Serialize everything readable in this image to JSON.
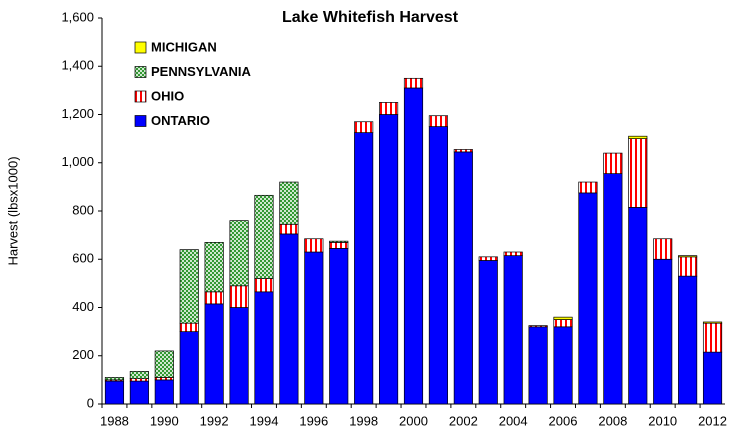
{
  "chart_data": {
    "type": "stacked-bar",
    "title": "Lake Whitefish Harvest",
    "y_label": "Harvest (lbsx1000)",
    "categories": [
      "1988",
      null,
      "1990",
      null,
      "1992",
      null,
      "1994",
      null,
      "1996",
      null,
      "1998",
      null,
      "2000",
      null,
      "2002",
      null,
      "2004",
      null,
      "2006",
      null,
      "2008",
      null,
      "2010",
      null,
      "2012"
    ],
    "series": [
      {
        "name": "ONTARIO",
        "color": "#0000ff",
        "fill": "solid",
        "values": [
          95,
          95,
          100,
          300,
          415,
          400,
          465,
          705,
          630,
          645,
          1125,
          1200,
          1310,
          1150,
          1045,
          595,
          615,
          320,
          320,
          875,
          955,
          815,
          600,
          530,
          215
        ]
      },
      {
        "name": "OHIO",
        "color": "#ff0000",
        "fill": "stripes",
        "values": [
          5,
          10,
          10,
          35,
          50,
          90,
          55,
          40,
          55,
          25,
          45,
          50,
          40,
          45,
          10,
          15,
          15,
          5,
          30,
          45,
          85,
          285,
          85,
          80,
          120
        ]
      },
      {
        "name": "PENNSYLVANIA",
        "color": "#339933",
        "fill": "dots",
        "values": [
          10,
          30,
          110,
          305,
          205,
          270,
          345,
          175,
          0,
          5,
          0,
          0,
          0,
          0,
          0,
          0,
          0,
          0,
          0,
          0,
          0,
          0,
          0,
          0,
          0
        ]
      },
      {
        "name": "MICHIGAN",
        "color": "#ffff00",
        "fill": "solid",
        "values": [
          0,
          0,
          0,
          0,
          0,
          0,
          0,
          0,
          0,
          0,
          0,
          0,
          0,
          0,
          0,
          0,
          0,
          0,
          10,
          0,
          0,
          10,
          0,
          5,
          5
        ]
      }
    ],
    "ylim": [
      0,
      1600
    ],
    "yticks": [
      0,
      200,
      400,
      600,
      800,
      {
        "value": 1000,
        "label": "1,000"
      },
      {
        "value": 1200,
        "label": "1,200"
      },
      {
        "value": 1400,
        "label": "1,400"
      },
      {
        "value": 1600,
        "label": "1,600"
      }
    ],
    "legend": "upper left",
    "grid": false
  }
}
